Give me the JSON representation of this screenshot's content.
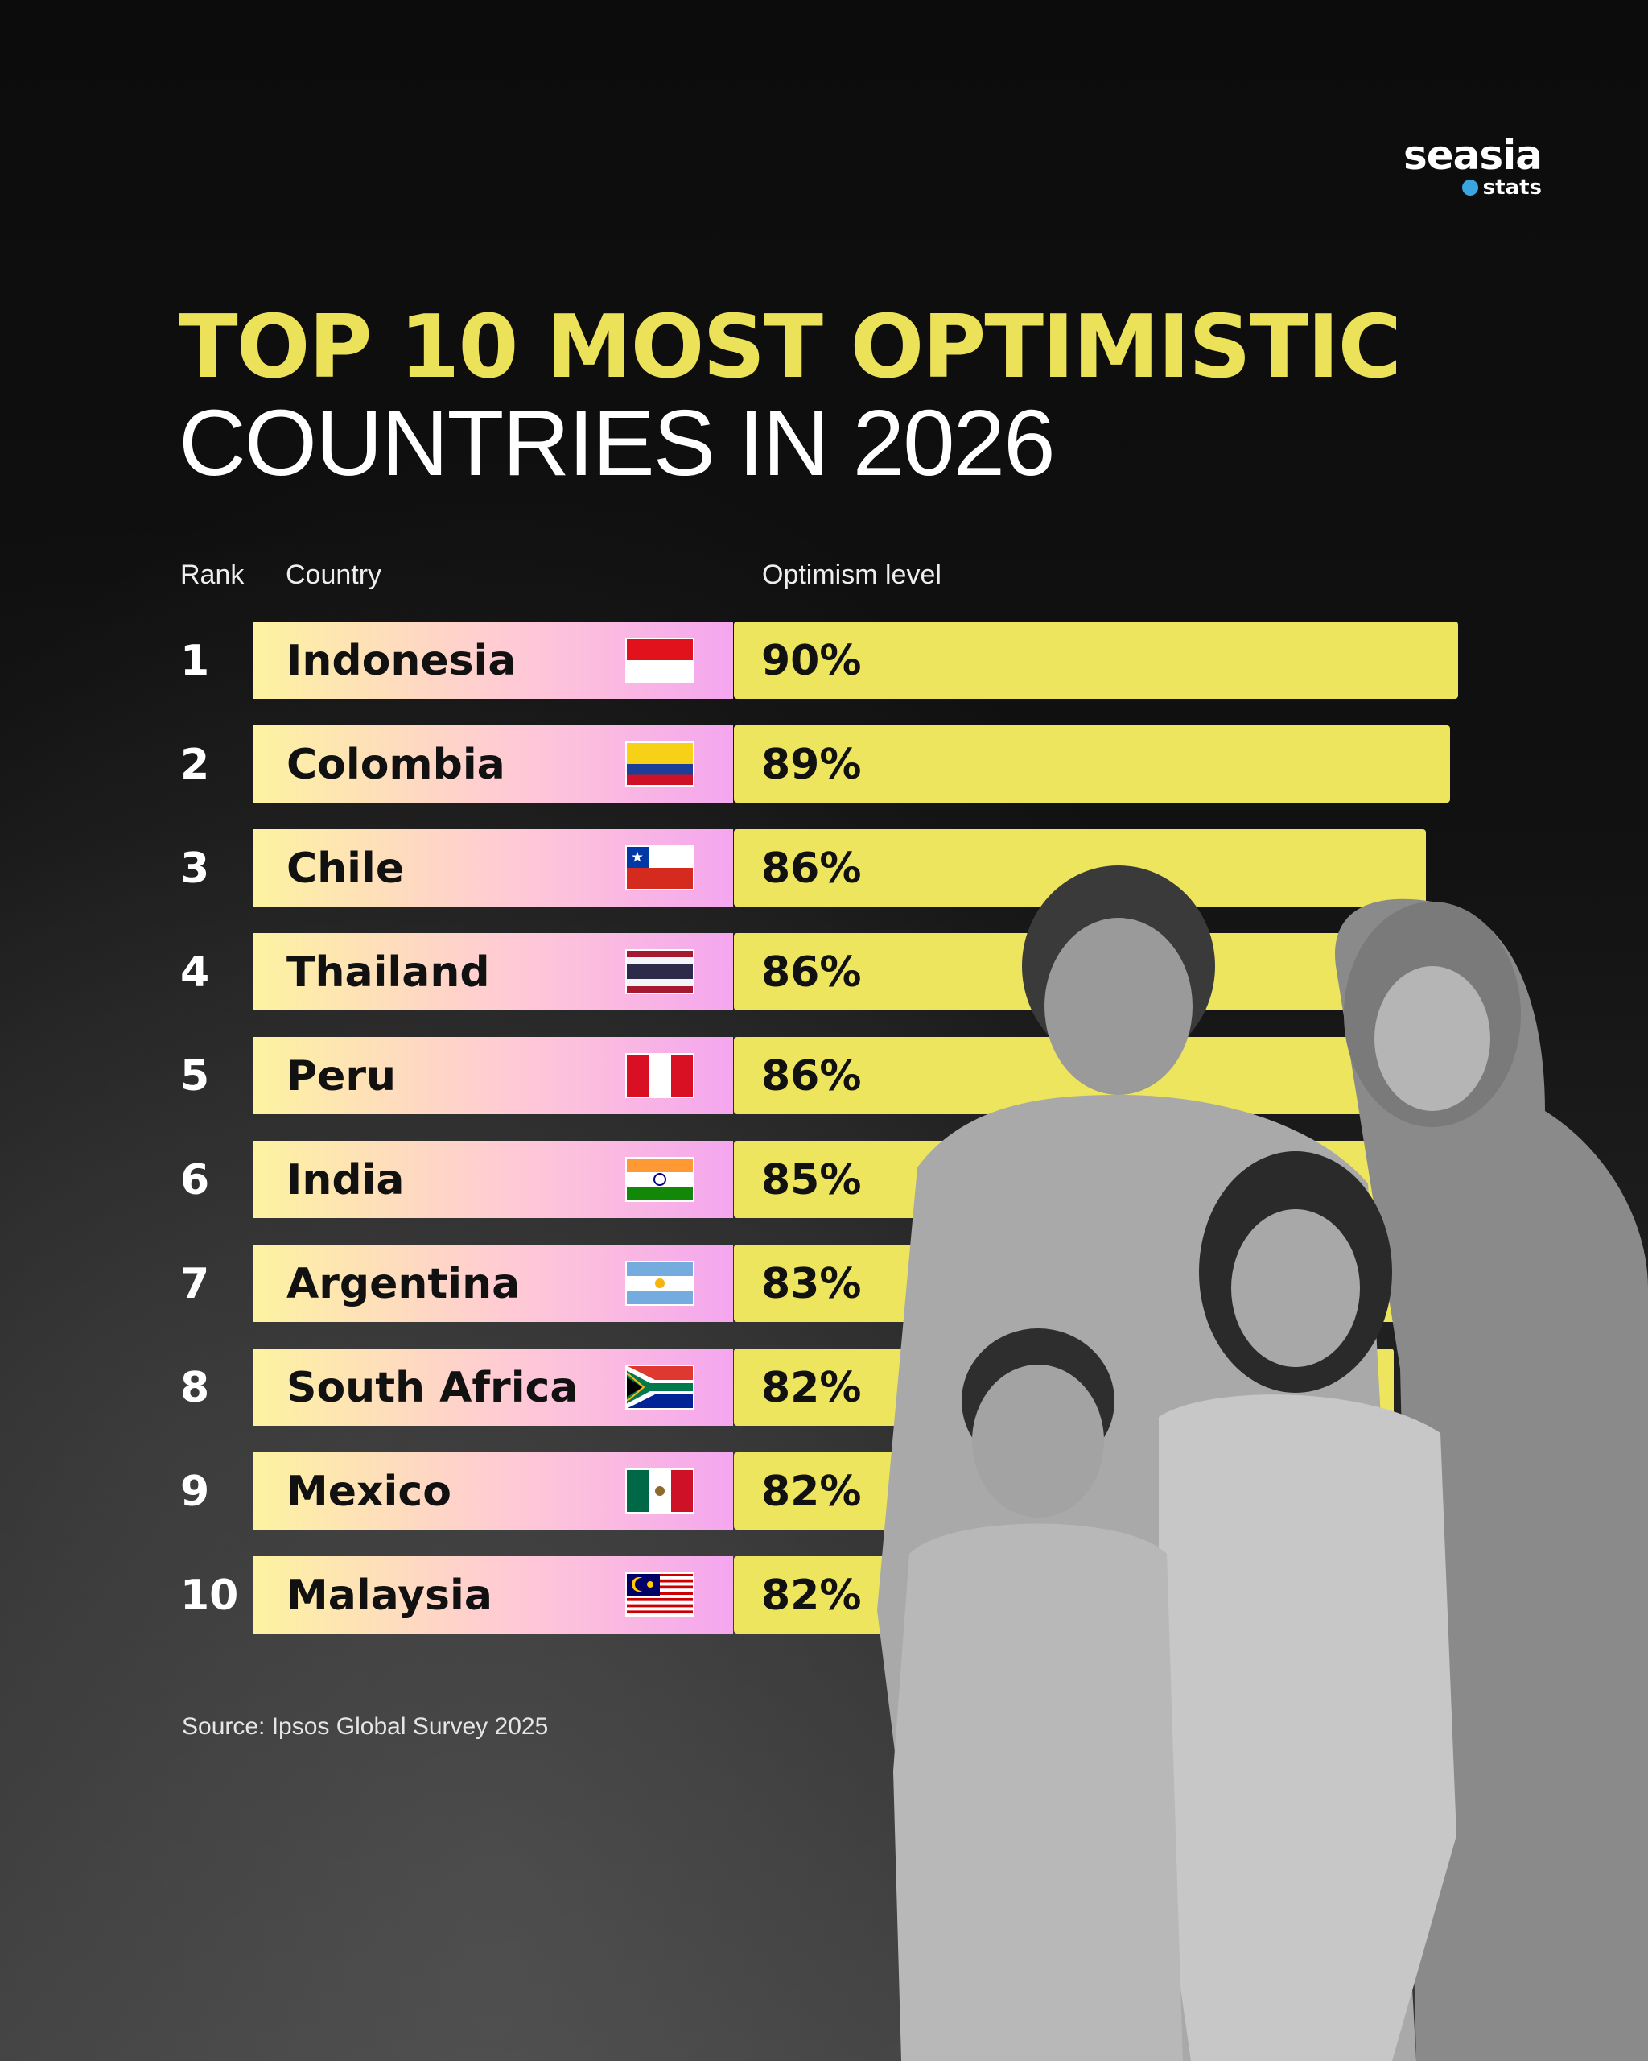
{
  "logo": {
    "word": "seasia",
    "sub": "stats"
  },
  "title_line1": "TOP 10 MOST OPTIMISTIC",
  "title_line2": "COUNTRIES IN 2026",
  "headers": {
    "rank": "Rank",
    "country": "Country",
    "optimism": "Optimism level"
  },
  "source": "Source: Ipsos Global Survey 2025",
  "colors": {
    "bar": "#ede55e",
    "title_accent": "#ece25a",
    "label_gradient_start": "#fdf3a0",
    "label_gradient_mid": "#ffc9d6",
    "label_gradient_end": "#f6a8f2"
  },
  "chart_data": {
    "type": "bar",
    "orientation": "horizontal",
    "title": "TOP 10 MOST OPTIMISTIC COUNTRIES IN 2026",
    "ylabel": "Optimism level",
    "categories": [
      "Indonesia",
      "Colombia",
      "Chile",
      "Thailand",
      "Peru",
      "India",
      "Argentina",
      "South Africa",
      "Mexico",
      "Malaysia"
    ],
    "ranks": [
      "1",
      "2",
      "3",
      "4",
      "5",
      "6",
      "7",
      "8",
      "9",
      "10"
    ],
    "values": [
      90,
      89,
      86,
      86,
      86,
      85,
      83,
      82,
      82,
      82
    ],
    "value_labels": [
      "90%",
      "89%",
      "86%",
      "86%",
      "86%",
      "85%",
      "83%",
      "82%",
      "82%",
      "82%"
    ],
    "flags": [
      "indonesia-flag-icon",
      "colombia-flag-icon",
      "chile-flag-icon",
      "thailand-flag-icon",
      "peru-flag-icon",
      "india-flag-icon",
      "argentina-flag-icon",
      "south-africa-flag-icon",
      "mexico-flag-icon",
      "malaysia-flag-icon"
    ],
    "grid": false,
    "legend": "none"
  }
}
